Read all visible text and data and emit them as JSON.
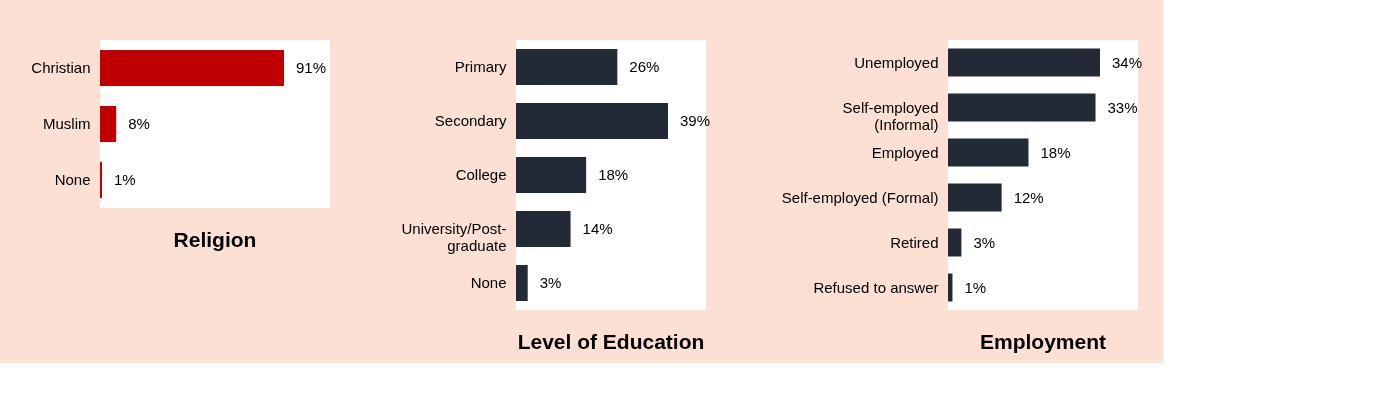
{
  "chart_data": [
    {
      "type": "bar",
      "orientation": "horizontal",
      "title": "Religion",
      "categories": [
        "Christian",
        "Muslim",
        "None"
      ],
      "values": [
        91,
        8,
        1
      ],
      "value_labels": [
        "91%",
        "8%",
        "1%"
      ],
      "color": "#c00000"
    },
    {
      "type": "bar",
      "orientation": "horizontal",
      "title": "Level of Education",
      "categories": [
        "Primary",
        "Secondary",
        "College",
        "University/Post-\ngraduate",
        "None"
      ],
      "values": [
        26,
        39,
        18,
        14,
        3
      ],
      "value_labels": [
        "26%",
        "39%",
        "18%",
        "14%",
        "3%"
      ],
      "color": "#222a35"
    },
    {
      "type": "bar",
      "orientation": "horizontal",
      "title": "Employment",
      "categories": [
        "Unemployed",
        "Self-employed\n(Informal)",
        "Employed",
        "Self-employed (Formal)",
        "Retired",
        "Refused to answer"
      ],
      "values": [
        34,
        33,
        18,
        12,
        3,
        1
      ],
      "value_labels": [
        "34%",
        "33%",
        "18%",
        "12%",
        "3%",
        "1%"
      ],
      "color": "#222a35"
    }
  ]
}
